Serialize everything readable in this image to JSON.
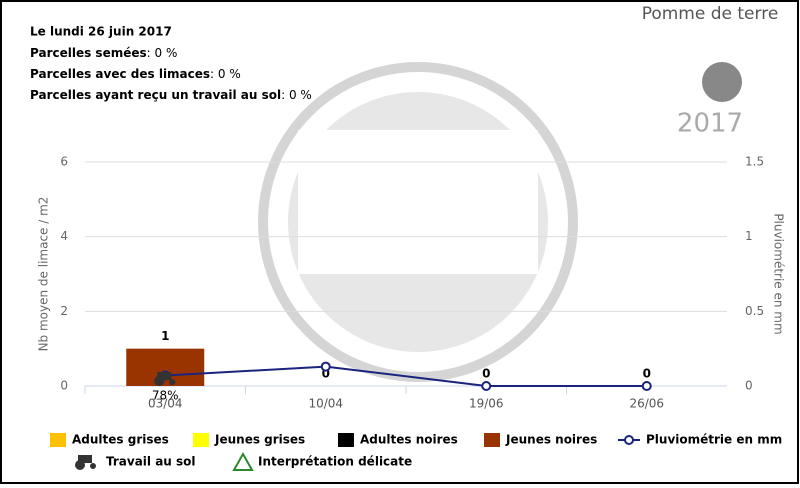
{
  "header": {
    "date": "Le lundi 26 juin 2017",
    "lines": [
      {
        "label": "Parcelles semées",
        "value": "0 %"
      },
      {
        "label": "Parcelles avec des limaces",
        "value": "0 %"
      },
      {
        "label": "Parcelles ayant reçu un travail au sol",
        "value": "0 %"
      }
    ],
    "crop": "Pomme de terre",
    "year": "2017"
  },
  "chart_data": {
    "type": "bar",
    "y_label": "Nb moyen de limace / m2",
    "y2_label": "Pluviométrie en mm",
    "categories": [
      "03/04",
      "10/04",
      "19/06",
      "26/06"
    ],
    "series": [
      {
        "name": "Adultes grises",
        "color": "#ffc000",
        "values": [
          null,
          null,
          null,
          null
        ]
      },
      {
        "name": "Jeunes grises",
        "color": "#ffff00",
        "values": [
          null,
          null,
          null,
          null
        ]
      },
      {
        "name": "Adultes noires",
        "color": "#000000",
        "values": [
          null,
          null,
          null,
          null
        ]
      },
      {
        "name": "Jeunes noires",
        "color": "#993300",
        "values": [
          1,
          0,
          0,
          0
        ]
      },
      {
        "name": "Pluviométrie en mm",
        "color": "#1a237e",
        "type": "line",
        "axis": "y2",
        "values": [
          0.07,
          0.13,
          0,
          0
        ]
      }
    ],
    "ylim": [
      0,
      6
    ],
    "yticks": [
      0,
      2,
      4,
      6
    ],
    "y2lim": [
      0,
      1.5
    ],
    "y2ticks": [
      0,
      0.5,
      1,
      1.5
    ],
    "grid": true,
    "annotations": [
      {
        "category": "03/04",
        "text": "78%"
      }
    ],
    "extra_legend": [
      "Travail au sol",
      "Interprétation délicate"
    ]
  }
}
